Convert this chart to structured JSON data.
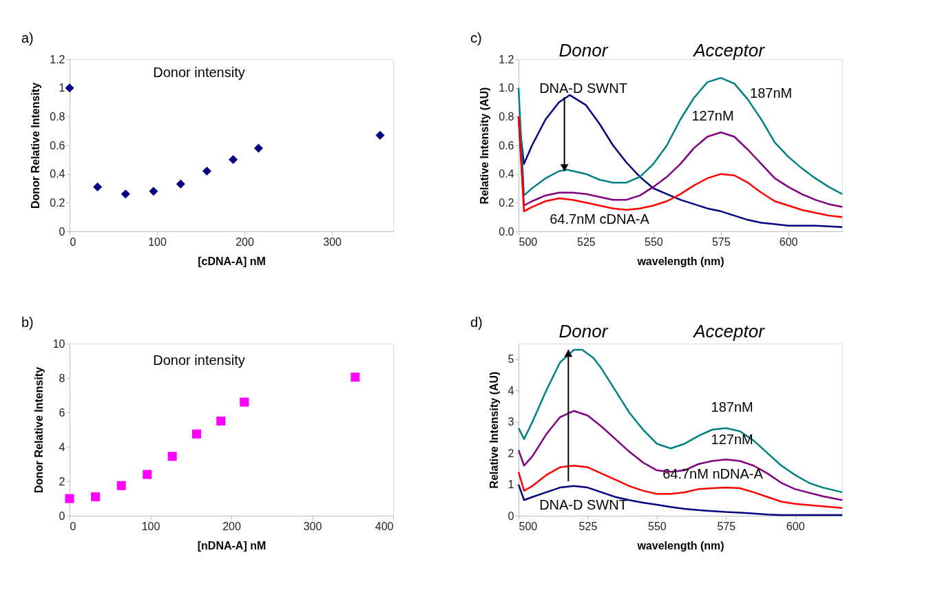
{
  "chart_data": [
    {
      "type": "scatter",
      "xlabel": "[cDNA-A] nM",
      "ylabel": "Donor Relative Intensity",
      "marker": "diamond",
      "grid": false,
      "annotations": [
        "a)",
        "Donor intensity"
      ],
      "xlim": [
        0,
        370
      ],
      "xticks": [
        0,
        100,
        200,
        300
      ],
      "ylim": [
        0,
        1.2
      ],
      "yticks": [
        0,
        0.2,
        0.4,
        0.6,
        0.8,
        1,
        1.2
      ],
      "series": [
        {
          "color": "#000080",
          "x": [
            0,
            32,
            64,
            96,
            127,
            157,
            187,
            216,
            355
          ],
          "values": [
            1.0,
            0.31,
            0.26,
            0.28,
            0.33,
            0.42,
            0.5,
            0.58,
            0.67
          ]
        }
      ]
    },
    {
      "type": "line",
      "xlabel": "wavelength (nm)",
      "ylabel": "Relative Intensity (AU)",
      "grid": false,
      "annotations": [
        "c)",
        "Donor",
        "Acceptor",
        {
          "text": "DNA-D SWNT",
          "x": 517,
          "y": 0.42
        },
        "187nM",
        "127nM",
        "64.7nM cDNA-A"
      ],
      "xlim": [
        500,
        620
      ],
      "xticks": [
        500,
        525,
        550,
        575,
        600
      ],
      "ylim": [
        0,
        1.2
      ],
      "yticks": [
        {
          "value": 0,
          "label": "0.0"
        },
        0.2,
        0.4,
        0.6,
        0.8,
        {
          "value": 1,
          "label": "1.0"
        },
        1.2
      ],
      "series": [
        {
          "color": "#000080",
          "x": [
            500,
            502,
            505,
            510,
            515,
            519,
            525,
            530,
            535,
            540,
            545,
            550,
            555,
            560,
            565,
            570,
            575,
            580,
            585,
            590,
            595,
            600,
            610,
            620
          ],
          "values": [
            0.8,
            0.47,
            0.6,
            0.78,
            0.9,
            0.95,
            0.88,
            0.75,
            0.6,
            0.48,
            0.38,
            0.3,
            0.26,
            0.22,
            0.19,
            0.16,
            0.14,
            0.11,
            0.08,
            0.06,
            0.05,
            0.04,
            0.04,
            0.03
          ]
        },
        {
          "color": "#008080",
          "x": [
            500,
            502,
            505,
            510,
            515,
            518,
            525,
            530,
            535,
            540,
            545,
            550,
            555,
            560,
            565,
            570,
            575,
            580,
            585,
            590,
            595,
            600,
            605,
            610,
            615,
            620
          ],
          "values": [
            1.0,
            0.25,
            0.3,
            0.37,
            0.42,
            0.43,
            0.4,
            0.36,
            0.34,
            0.34,
            0.38,
            0.47,
            0.6,
            0.78,
            0.93,
            1.04,
            1.07,
            1.03,
            0.92,
            0.78,
            0.62,
            0.52,
            0.44,
            0.37,
            0.31,
            0.26
          ]
        },
        {
          "color": "#800080",
          "x": [
            500,
            502,
            505,
            510,
            515,
            520,
            525,
            530,
            535,
            540,
            545,
            550,
            555,
            560,
            565,
            570,
            575,
            580,
            585,
            590,
            595,
            600,
            605,
            610,
            615,
            620
          ],
          "values": [
            0.8,
            0.18,
            0.21,
            0.25,
            0.27,
            0.27,
            0.26,
            0.24,
            0.22,
            0.22,
            0.25,
            0.31,
            0.38,
            0.47,
            0.58,
            0.66,
            0.69,
            0.66,
            0.57,
            0.47,
            0.37,
            0.31,
            0.26,
            0.22,
            0.19,
            0.17
          ]
        },
        {
          "color": "#ff0000",
          "x": [
            500,
            502,
            505,
            510,
            515,
            520,
            525,
            530,
            535,
            540,
            545,
            550,
            555,
            560,
            565,
            570,
            575,
            580,
            585,
            590,
            595,
            600,
            605,
            610,
            615,
            620
          ],
          "values": [
            0.8,
            0.14,
            0.17,
            0.21,
            0.23,
            0.22,
            0.2,
            0.18,
            0.16,
            0.15,
            0.16,
            0.18,
            0.21,
            0.26,
            0.32,
            0.37,
            0.4,
            0.39,
            0.34,
            0.27,
            0.21,
            0.18,
            0.15,
            0.13,
            0.11,
            0.1
          ]
        }
      ]
    },
    {
      "type": "scatter",
      "xlabel": "[nDNA-A] nM",
      "ylabel": "Donor Relative Intensity",
      "marker": "square",
      "grid": false,
      "annotations": [
        "b)",
        "Donor intensity"
      ],
      "xlim": [
        0,
        400
      ],
      "xticks": [
        0,
        100,
        200,
        300,
        400
      ],
      "ylim": [
        0,
        10
      ],
      "yticks": [
        0,
        2,
        4,
        6,
        8,
        10
      ],
      "series": [
        {
          "color": "#ff00ff",
          "x": [
            0,
            32,
            64,
            96,
            127,
            157,
            187,
            216,
            353
          ],
          "values": [
            1.0,
            1.1,
            1.75,
            2.4,
            3.45,
            4.75,
            5.5,
            6.6,
            8.05
          ]
        }
      ]
    },
    {
      "type": "line",
      "xlabel": "wavelength (nm)",
      "ylabel": "Relative Intensity (AU)",
      "grid": false,
      "annotations": [
        "d)",
        "Donor",
        "Acceptor",
        "187nM",
        "127nM",
        "64.7nM nDNA-A",
        {
          "text": "DNA-D SWNT",
          "x": 518,
          "y": 5.3
        }
      ],
      "xlim": [
        500,
        617
      ],
      "xticks": [
        500,
        525,
        550,
        575,
        600
      ],
      "ylim": [
        0,
        5.5
      ],
      "yticks": [
        0,
        1,
        2,
        3,
        4,
        5
      ],
      "series": [
        {
          "color": "#008080",
          "x": [
            500,
            502,
            505,
            510,
            515,
            520,
            523,
            527,
            530,
            535,
            540,
            545,
            550,
            555,
            560,
            565,
            570,
            575,
            580,
            585,
            590,
            595,
            600,
            605,
            610,
            617
          ],
          "values": [
            2.8,
            2.45,
            3.0,
            4.0,
            4.9,
            5.3,
            5.3,
            5.05,
            4.7,
            4.0,
            3.3,
            2.75,
            2.3,
            2.15,
            2.3,
            2.55,
            2.75,
            2.8,
            2.7,
            2.4,
            2.0,
            1.6,
            1.3,
            1.05,
            0.9,
            0.75
          ]
        },
        {
          "color": "#800080",
          "x": [
            500,
            502,
            505,
            510,
            515,
            520,
            525,
            530,
            535,
            540,
            545,
            550,
            555,
            560,
            565,
            570,
            575,
            580,
            585,
            590,
            595,
            600,
            610,
            617
          ],
          "values": [
            2.1,
            1.6,
            1.9,
            2.6,
            3.15,
            3.35,
            3.2,
            2.85,
            2.45,
            2.05,
            1.7,
            1.45,
            1.4,
            1.45,
            1.65,
            1.75,
            1.8,
            1.75,
            1.6,
            1.35,
            1.05,
            0.85,
            0.62,
            0.5
          ]
        },
        {
          "color": "#ff0000",
          "x": [
            500,
            502,
            505,
            510,
            515,
            520,
            525,
            530,
            535,
            540,
            545,
            550,
            555,
            560,
            565,
            570,
            575,
            580,
            585,
            590,
            595,
            600,
            610,
            617
          ],
          "values": [
            1.4,
            0.8,
            0.95,
            1.3,
            1.55,
            1.6,
            1.55,
            1.35,
            1.15,
            0.95,
            0.8,
            0.7,
            0.7,
            0.75,
            0.85,
            0.88,
            0.9,
            0.88,
            0.75,
            0.6,
            0.45,
            0.38,
            0.3,
            0.25
          ]
        },
        {
          "color": "#000080",
          "x": [
            500,
            502,
            505,
            510,
            515,
            520,
            525,
            530,
            535,
            540,
            545,
            550,
            555,
            560,
            565,
            570,
            575,
            580,
            585,
            590,
            595,
            600,
            610,
            617
          ],
          "values": [
            1.0,
            0.5,
            0.6,
            0.75,
            0.9,
            0.95,
            0.9,
            0.75,
            0.6,
            0.5,
            0.42,
            0.35,
            0.28,
            0.22,
            0.18,
            0.15,
            0.12,
            0.1,
            0.07,
            0.04,
            0.02,
            0.02,
            0.02,
            0.02
          ]
        }
      ]
    }
  ]
}
